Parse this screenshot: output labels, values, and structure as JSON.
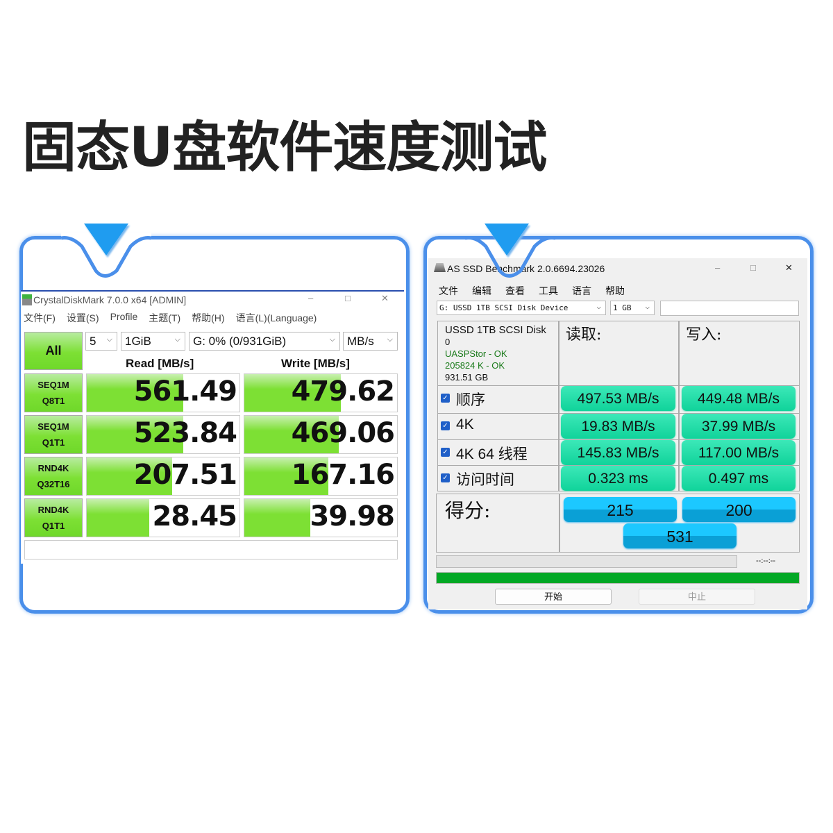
{
  "title": "固态U盘软件速度测试",
  "cdm": {
    "window_title": "CrystalDiskMark 7.0.0 x64 [ADMIN]",
    "menu": [
      "文件(F)",
      "设置(S)",
      "Profile",
      "主题(T)",
      "帮助(H)",
      "语言(L)(Language)"
    ],
    "all_button": "All",
    "count": "5",
    "size": "1GiB",
    "drive": "G: 0% (0/931GiB)",
    "unit": "MB/s",
    "read_header": "Read [MB/s]",
    "write_header": "Write [MB/s]",
    "rows": [
      {
        "l1": "SEQ1M",
        "l2": "Q8T1",
        "read": "561.49",
        "write": "479.62",
        "read_fill": 0.63,
        "write_fill": 0.63
      },
      {
        "l1": "SEQ1M",
        "l2": "Q1T1",
        "read": "523.84",
        "write": "469.06",
        "read_fill": 0.63,
        "write_fill": 0.62
      },
      {
        "l1": "RND4K",
        "l2": "Q32T16",
        "read": "207.51",
        "write": "167.16",
        "read_fill": 0.56,
        "write_fill": 0.55
      },
      {
        "l1": "RND4K",
        "l2": "Q1T1",
        "read": "28.45",
        "write": "39.98",
        "read_fill": 0.41,
        "write_fill": 0.43
      }
    ]
  },
  "asssd": {
    "window_title": "AS SSD Benchmark 2.0.6694.23026",
    "menu": [
      "文件",
      "编辑",
      "查看",
      "工具",
      "语言",
      "帮助"
    ],
    "drive_select": "G: USSD 1TB  SCSI Disk Device",
    "size_select": "1 GB",
    "info": {
      "name": "USSD 1TB  SCSI Disk",
      "line2": "0",
      "driver": "UASPStor - OK",
      "align": "205824 K - OK",
      "capacity": "931.51 GB"
    },
    "read_header": "读取:",
    "write_header": "写入:",
    "rows": [
      {
        "label": "顺序",
        "read": "497.53 MB/s",
        "write": "449.48 MB/s"
      },
      {
        "label": "4K",
        "read": "19.83 MB/s",
        "write": "37.99 MB/s"
      },
      {
        "label": "4K 64 线程",
        "read": "145.83 MB/s",
        "write": "117.00 MB/s"
      },
      {
        "label": "访问时间",
        "read": "0.323 ms",
        "write": "0.497 ms"
      }
    ],
    "score_label": "得分:",
    "score_read": "215",
    "score_write": "200",
    "score_total": "531",
    "time": "--:--:--",
    "progress": 1.0,
    "start": "开始",
    "stop": "中止"
  },
  "colors": {
    "accent": "#4a8fea",
    "cdm_green": "#7de034",
    "asssd_teal": "#10d39a",
    "asssd_score": "#1cc8ff",
    "progress": "#02a825"
  }
}
